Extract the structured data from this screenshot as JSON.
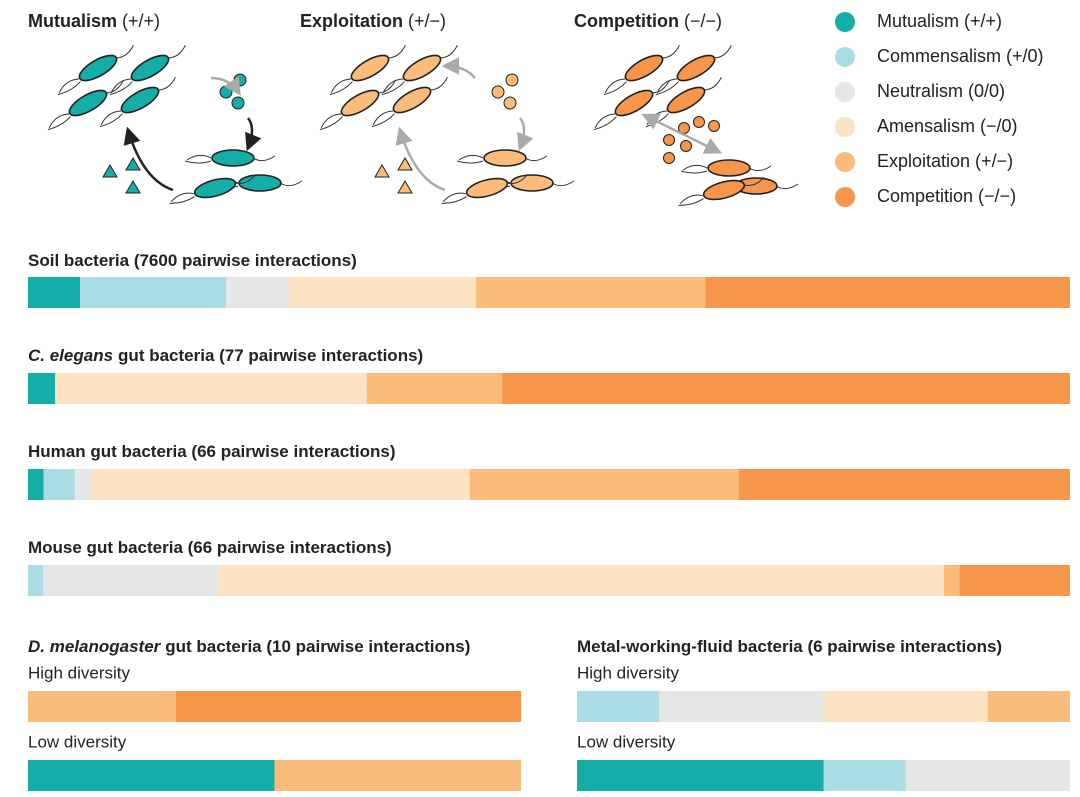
{
  "panels": [
    {
      "name": "Mutualism",
      "sign": "(+/+)"
    },
    {
      "name": "Exploitation",
      "sign": "(+/−)"
    },
    {
      "name": "Competition",
      "sign": "(−/−)"
    }
  ],
  "legend": [
    {
      "name": "Mutualism (+/+)",
      "color": "#14ada8"
    },
    {
      "name": "Commensalism (+/0)",
      "color": "#aadde3"
    },
    {
      "name": "Neutralism (0/0)",
      "color": "#e5e6e8"
    },
    {
      "name": "Amensalism (−/0)",
      "color": "#fce3c3"
    },
    {
      "name": "Exploitation (+/−)",
      "color": "#fbbb7a"
    },
    {
      "name": "Competition (−/−)",
      "color": "#f7964a"
    }
  ],
  "chart_data": [
    {
      "type": "stacked-bar",
      "title": "Soil bacteria (7600 pairwise interactions)",
      "categories": [
        null
      ],
      "values": [
        [
          5,
          14,
          6,
          18,
          22,
          35
        ]
      ]
    },
    {
      "type": "stacked-bar",
      "title_italic": "C. elegans",
      "title": "gut bacteria (77 pairwise interactions)",
      "categories": [
        null
      ],
      "values": [
        [
          2.6,
          0,
          0,
          29.9,
          13.0,
          54.5
        ]
      ]
    },
    {
      "type": "stacked-bar",
      "title": "Human gut bacteria (66 pairwise interactions)",
      "categories": [
        null
      ],
      "values": [
        [
          1.5,
          3.0,
          1.5,
          36.4,
          25.8,
          31.8
        ]
      ]
    },
    {
      "type": "stacked-bar",
      "title": "Mouse gut bacteria (66 pairwise interactions)",
      "categories": [
        null
      ],
      "values": [
        [
          0,
          1.5,
          16.7,
          69.7,
          1.5,
          10.6
        ]
      ]
    },
    {
      "type": "stacked-bar",
      "title_italic": "D. melanogaster",
      "title": "gut bacteria (10 pairwise interactions)",
      "categories": [
        "High diversity",
        "Low diversity"
      ],
      "values": [
        [
          0,
          0,
          0,
          0,
          30,
          70
        ],
        [
          50,
          0,
          0,
          0,
          50,
          0
        ]
      ]
    },
    {
      "type": "stacked-bar",
      "title": "Metal-working-fluid bacteria (6 pairwise interactions)",
      "categories": [
        "High diversity",
        "Low diversity"
      ],
      "values": [
        [
          0,
          16.7,
          33.3,
          33.3,
          16.7,
          0
        ],
        [
          50,
          16.7,
          33.3,
          0,
          0,
          0
        ]
      ]
    }
  ]
}
